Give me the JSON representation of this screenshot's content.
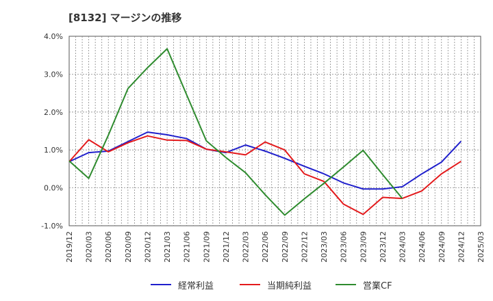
{
  "title": "[8132]  マージンの推移",
  "chart_data": {
    "type": "line",
    "x": [
      "2019/12",
      "2020/03",
      "2020/06",
      "2020/09",
      "2020/12",
      "2021/03",
      "2021/06",
      "2021/09",
      "2021/12",
      "2022/03",
      "2022/06",
      "2022/09",
      "2022/12",
      "2023/03",
      "2023/06",
      "2023/09",
      "2023/12",
      "2024/03",
      "2024/06",
      "2024/09",
      "2024/12",
      "2025/03"
    ],
    "y_ticks": [
      "4.0%",
      "3.0%",
      "2.0%",
      "1.0%",
      "0.0%",
      "-1.0%"
    ],
    "ylim": [
      -1.0,
      4.0
    ],
    "grid": true,
    "legend_position": "bottom",
    "series": [
      {
        "name": "経常利益",
        "color": "#1f1fcc",
        "values": [
          0.69,
          0.93,
          0.97,
          1.22,
          1.47,
          1.4,
          1.3,
          1.02,
          0.93,
          1.13,
          0.97,
          0.78,
          0.57,
          0.37,
          0.13,
          -0.03,
          -0.03,
          0.03,
          0.37,
          0.68,
          1.23,
          null
        ]
      },
      {
        "name": "当期純利益",
        "color": "#e31a1c",
        "values": [
          0.69,
          1.27,
          0.95,
          1.19,
          1.37,
          1.26,
          1.25,
          1.02,
          0.95,
          0.87,
          1.21,
          1.0,
          0.37,
          0.17,
          -0.43,
          -0.7,
          -0.25,
          -0.28,
          -0.08,
          0.37,
          0.7,
          null
        ]
      },
      {
        "name": "営業CF",
        "color": "#2e8b2e",
        "values": [
          0.71,
          0.25,
          1.39,
          2.62,
          3.17,
          3.67,
          2.45,
          1.24,
          0.8,
          0.4,
          -0.18,
          -0.72,
          -0.29,
          0.12,
          0.55,
          0.99,
          0.35,
          -0.28,
          null,
          null,
          null,
          null
        ]
      }
    ]
  }
}
